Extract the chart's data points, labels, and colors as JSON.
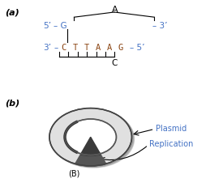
{
  "label_a": "(a)",
  "label_b": "(b)",
  "top_label_A": "A",
  "bottom_label_C": "C",
  "plasmid_label": "Plasmid",
  "replication_label": "Replication",
  "B_label": "(B)",
  "bg_color": "#ffffff",
  "dna_color": "#4472c4",
  "seq_color": "#8B4513",
  "text_color": "#000000",
  "label_color": "#4472c4",
  "plasmid_ring_color": "#d8d8d8",
  "plasmid_dark_border": "#555555",
  "wedge_dark": "#555555",
  "wedge_darker": "#333333"
}
